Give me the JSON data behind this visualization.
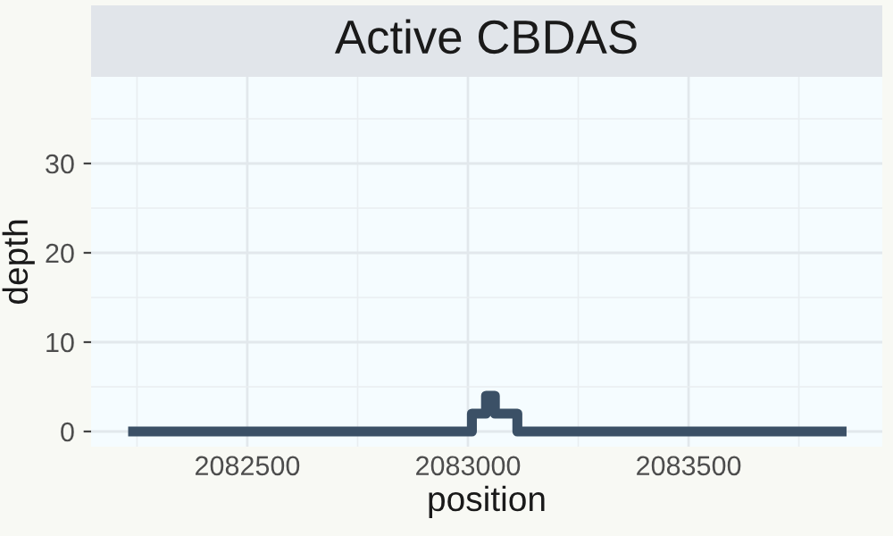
{
  "chart_data": {
    "type": "step",
    "title": "Active CBDAS",
    "xlabel": "position",
    "ylabel": "depth",
    "x": [
      2082230,
      2083009,
      2083041,
      2083061,
      2083112,
      2083858
    ],
    "series": [
      {
        "color": "#3b5066",
        "values": [
          0,
          2,
          4,
          2,
          0,
          0
        ]
      }
    ],
    "xlim": [
      2082146,
      2083939
    ],
    "xticks": [
      2082500,
      2083000,
      2083500
    ],
    "ylim": [
      -1.7,
      39.7
    ],
    "yticks": [
      0,
      10,
      20,
      30
    ],
    "grid": true
  }
}
